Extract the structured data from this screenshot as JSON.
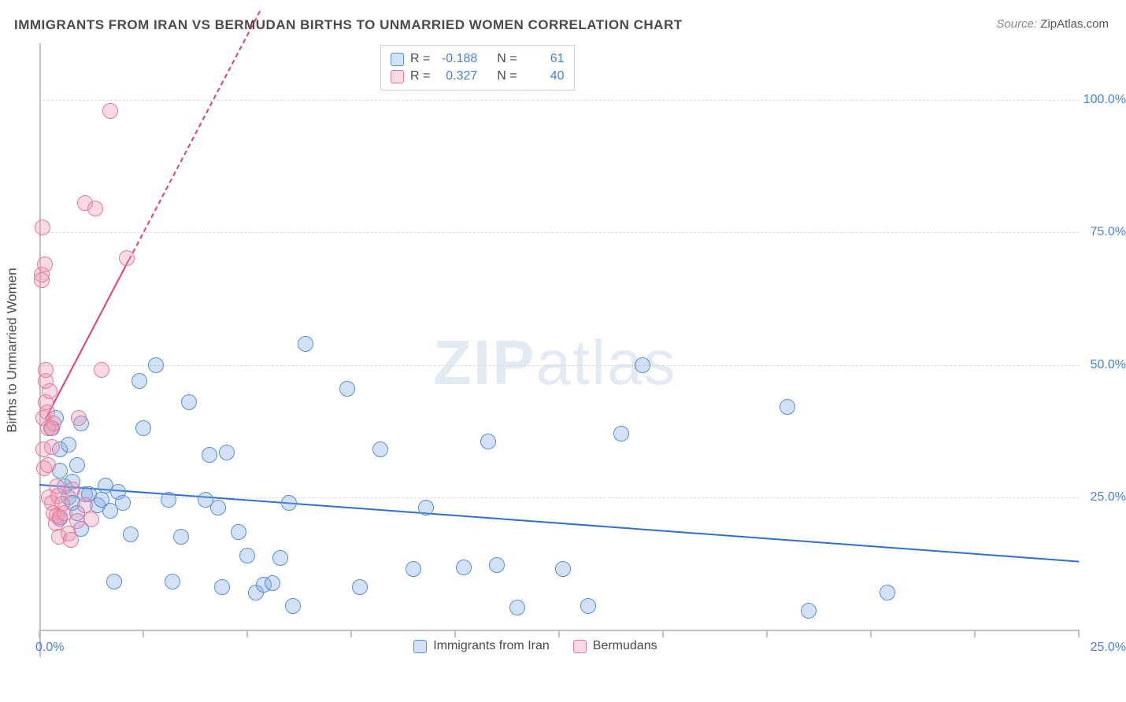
{
  "title": "IMMIGRANTS FROM IRAN VS BERMUDAN BIRTHS TO UNMARRIED WOMEN CORRELATION CHART",
  "source_label": "Source:",
  "source_value": "ZipAtlas.com",
  "y_axis_label": "Births to Unmarried Women",
  "watermark_a": "ZIP",
  "watermark_b": "atlas",
  "chart": {
    "background_color": "#ffffff",
    "grid_color": "#dcdcdc",
    "axis_color": "#bfbfbf",
    "tick_label_color": "#4a80d6",
    "xlim": [
      0,
      25
    ],
    "ylim": [
      0,
      110
    ],
    "y_ticks": [
      25,
      50,
      75,
      100
    ],
    "y_tick_labels": [
      "25.0%",
      "50.0%",
      "75.0%",
      "100.0%"
    ],
    "x_ticks": [
      0,
      2.5,
      5,
      7.5,
      10,
      12.5,
      15,
      17.5,
      20,
      22.5,
      25
    ],
    "x_origin_label": "0.0%",
    "x_max_label": "25.0%",
    "marker_radius": 10,
    "marker_border": 1,
    "series": [
      {
        "key": "iran",
        "label": "Immigrants from Iran",
        "fill": "rgba(130,170,230,0.35)",
        "stroke": "#5a8fd6",
        "trend_color": "#2c6fd6",
        "R": "-0.188",
        "N": "61",
        "trend": {
          "x1": 0,
          "y1": 27.5,
          "x2": 25,
          "y2": 13
        },
        "points": [
          [
            0.3,
            38
          ],
          [
            0.4,
            40
          ],
          [
            0.5,
            30
          ],
          [
            0.5,
            34
          ],
          [
            0.5,
            21
          ],
          [
            0.6,
            27
          ],
          [
            0.7,
            25
          ],
          [
            0.7,
            35
          ],
          [
            0.8,
            24
          ],
          [
            0.8,
            28
          ],
          [
            0.9,
            22
          ],
          [
            0.9,
            31
          ],
          [
            1,
            39
          ],
          [
            1,
            19
          ],
          [
            1.1,
            25.5
          ],
          [
            1.2,
            25.5
          ],
          [
            1.4,
            23.5
          ],
          [
            1.5,
            24.5
          ],
          [
            1.6,
            27.2
          ],
          [
            1.7,
            22.5
          ],
          [
            1.8,
            9
          ],
          [
            1.9,
            26
          ],
          [
            2,
            24
          ],
          [
            2.2,
            18
          ],
          [
            2.4,
            47
          ],
          [
            2.5,
            38
          ],
          [
            2.8,
            50
          ],
          [
            3.1,
            24.5
          ],
          [
            3.2,
            9
          ],
          [
            3.4,
            17.5
          ],
          [
            3.6,
            43
          ],
          [
            4,
            24.5
          ],
          [
            4.1,
            33
          ],
          [
            4.3,
            23
          ],
          [
            4.4,
            8
          ],
          [
            4.5,
            33.5
          ],
          [
            4.8,
            18.5
          ],
          [
            5,
            14
          ],
          [
            5.2,
            7
          ],
          [
            5.4,
            8.4
          ],
          [
            5.6,
            8.8
          ],
          [
            5.8,
            13.5
          ],
          [
            6,
            24
          ],
          [
            6.1,
            4.5
          ],
          [
            6.4,
            54
          ],
          [
            7.4,
            45.5
          ],
          [
            7.7,
            8
          ],
          [
            8.2,
            34
          ],
          [
            9,
            11.5
          ],
          [
            9.3,
            23
          ],
          [
            10.2,
            11.8
          ],
          [
            10.8,
            35.5
          ],
          [
            11,
            12.2
          ],
          [
            11.5,
            4.2
          ],
          [
            12.6,
            11.5
          ],
          [
            13.2,
            4.5
          ],
          [
            14,
            37
          ],
          [
            14.5,
            50
          ],
          [
            18,
            42
          ],
          [
            18.5,
            3.5
          ],
          [
            20.4,
            7
          ]
        ]
      },
      {
        "key": "berm",
        "label": "Bermudans",
        "fill": "rgba(240,150,175,0.35)",
        "stroke": "#e07ba0",
        "trend_color": "#e23d7d",
        "R": "0.327",
        "N": "40",
        "trend_solid": {
          "x1": 0.15,
          "y1": 40,
          "x2": 2.15,
          "y2": 70
        },
        "trend_dash": {
          "x1": 2.15,
          "y1": 70,
          "x2": 5.3,
          "y2": 117
        },
        "points": [
          [
            0.05,
            67
          ],
          [
            0.06,
            66
          ],
          [
            0.08,
            76
          ],
          [
            0.1,
            40
          ],
          [
            0.1,
            34
          ],
          [
            0.12,
            30.5
          ],
          [
            0.13,
            69
          ],
          [
            0.15,
            47
          ],
          [
            0.15,
            43
          ],
          [
            0.16,
            49
          ],
          [
            0.18,
            41
          ],
          [
            0.2,
            31
          ],
          [
            0.2,
            38
          ],
          [
            0.22,
            25
          ],
          [
            0.25,
            45
          ],
          [
            0.28,
            38
          ],
          [
            0.3,
            24
          ],
          [
            0.3,
            34.5
          ],
          [
            0.35,
            22
          ],
          [
            0.35,
            39
          ],
          [
            0.4,
            20
          ],
          [
            0.42,
            21.5
          ],
          [
            0.42,
            27
          ],
          [
            0.45,
            25.2
          ],
          [
            0.48,
            17.5
          ],
          [
            0.5,
            21.3
          ],
          [
            0.55,
            23.8
          ],
          [
            0.6,
            22
          ],
          [
            0.7,
            18.2
          ],
          [
            0.75,
            17
          ],
          [
            0.8,
            26.5
          ],
          [
            0.9,
            20.5
          ],
          [
            0.95,
            40
          ],
          [
            1.1,
            23.5
          ],
          [
            1.1,
            80.5
          ],
          [
            1.25,
            20.8
          ],
          [
            1.35,
            79.5
          ],
          [
            1.5,
            49
          ],
          [
            1.7,
            98
          ],
          [
            2.1,
            70.2
          ]
        ]
      }
    ]
  },
  "legend_top": {
    "rows": [
      {
        "sw_fill": "rgba(130,170,230,0.35)",
        "sw_stroke": "#5a8fd6",
        "r_label": "R =",
        "r_val": "-0.188",
        "n_label": "N =",
        "n_val": "61"
      },
      {
        "sw_fill": "rgba(240,150,175,0.35)",
        "sw_stroke": "#e07ba0",
        "r_label": "R =",
        "r_val": "0.327",
        "n_label": "N =",
        "n_val": "40"
      }
    ]
  },
  "legend_bottom": {
    "items": [
      {
        "sw_fill": "rgba(130,170,230,0.35)",
        "sw_stroke": "#5a8fd6",
        "label": "Immigrants from Iran"
      },
      {
        "sw_fill": "rgba(240,150,175,0.35)",
        "sw_stroke": "#e07ba0",
        "label": "Bermudans"
      }
    ]
  }
}
